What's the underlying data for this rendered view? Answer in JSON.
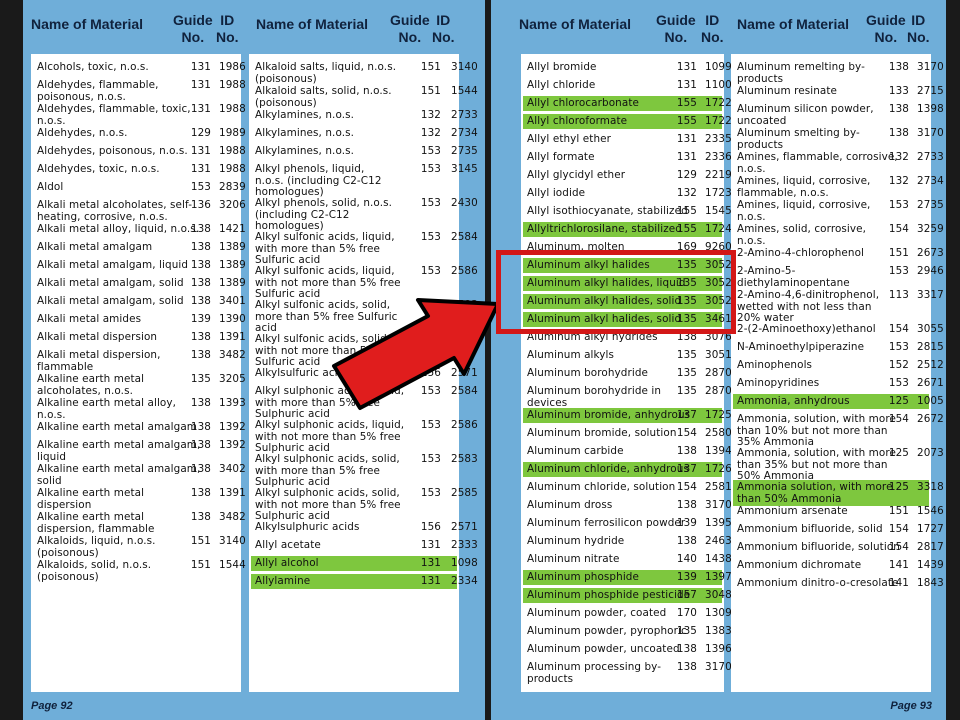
{
  "headers": {
    "name": "Name of Material",
    "guide1": "Guide",
    "guide2": "No.",
    "id1": "ID",
    "id2": "No."
  },
  "left_page": {
    "footer": "Page 92",
    "col1": [
      [
        "Alcohols, toxic, n.o.s.",
        "131",
        "1986"
      ],
      [
        "Aldehydes, flammable,\npoisonous, n.o.s.",
        "131",
        "1988"
      ],
      [
        "Aldehydes, flammable, toxic,\nn.o.s.",
        "131",
        "1988"
      ],
      [
        "Aldehydes, n.o.s.",
        "129",
        "1989"
      ],
      [
        "Aldehydes, poisonous, n.o.s.",
        "131",
        "1988"
      ],
      [
        "Aldehydes, toxic, n.o.s.",
        "131",
        "1988"
      ],
      [
        "Aldol",
        "153",
        "2839"
      ],
      [
        "Alkali metal alcoholates, self-\nheating, corrosive, n.o.s.",
        "136",
        "3206"
      ],
      [
        "Alkali metal alloy, liquid, n.o.s.",
        "138",
        "1421"
      ],
      [
        "Alkali metal amalgam",
        "138",
        "1389"
      ],
      [
        "Alkali metal amalgam, liquid",
        "138",
        "1389"
      ],
      [
        "Alkali metal amalgam, solid",
        "138",
        "1389"
      ],
      [
        "Alkali metal amalgam, solid",
        "138",
        "3401"
      ],
      [
        "Alkali metal amides",
        "139",
        "1390"
      ],
      [
        "Alkali metal dispersion",
        "138",
        "1391"
      ],
      [
        "Alkali metal dispersion,\nflammable",
        "138",
        "3482"
      ],
      [
        "Alkaline earth metal\nalcoholates, n.o.s.",
        "135",
        "3205"
      ],
      [
        "Alkaline earth metal alloy,\nn.o.s.",
        "138",
        "1393"
      ],
      [
        "Alkaline earth metal amalgam",
        "138",
        "1392"
      ],
      [
        "Alkaline earth metal amalgam,\nliquid",
        "138",
        "1392"
      ],
      [
        "Alkaline earth metal amalgam,\nsolid",
        "138",
        "3402"
      ],
      [
        "Alkaline earth metal\ndispersion",
        "138",
        "1391"
      ],
      [
        "Alkaline earth metal\ndispersion, flammable",
        "138",
        "3482"
      ],
      [
        "Alkaloids, liquid, n.o.s.\n(poisonous)",
        "151",
        "3140"
      ],
      [
        "Alkaloids, solid, n.o.s.\n(poisonous)",
        "151",
        "1544"
      ]
    ],
    "col2": [
      [
        "Alkaloid salts, liquid, n.o.s.\n(poisonous)",
        "151",
        "3140"
      ],
      [
        "Alkaloid salts, solid, n.o.s.\n(poisonous)",
        "151",
        "1544"
      ],
      [
        "Alkylamines, n.o.s.",
        "132",
        "2733"
      ],
      [
        "Alkylamines, n.o.s.",
        "132",
        "2734"
      ],
      [
        "Alkylamines, n.o.s.",
        "153",
        "2735"
      ],
      [
        "Alkyl phenols, liquid,\nn.o.s. (including C2-C12\nhomologues)",
        "153",
        "3145"
      ],
      [
        "Alkyl phenols, solid, n.o.s.\n(including C2-C12\nhomologues)",
        "153",
        "2430"
      ],
      [
        "Alkyl sulfonic acids, liquid,\nwith more than 5% free\nSulfuric acid",
        "153",
        "2584"
      ],
      [
        "Alkyl sulfonic acids, liquid,\nwith not more than 5% free\nSulfuric acid",
        "153",
        "2586"
      ],
      [
        "Alkyl sulfonic acids, solid,\nmore than 5% free Sulfuric\nacid",
        "153",
        "2583"
      ],
      [
        "Alkyl sulfonic acids, solid,\nwith not more than 5% free\nSulfuric acid",
        "153",
        "2585"
      ],
      [
        "Alkylsulfuric acids",
        "156",
        "2571"
      ],
      [
        "Alkyl sulphonic acids, liquid,\nwith more than 5% free\nSulphuric acid",
        "153",
        "2584"
      ],
      [
        "Alkyl sulphonic acids, liquid,\nwith not more than 5% free\nSulphuric acid",
        "153",
        "2586"
      ],
      [
        "Alkyl sulphonic acids, solid,\nwith more than 5% free\nSulphuric acid",
        "153",
        "2583"
      ],
      [
        "Alkyl sulphonic acids, solid,\nwith not more than 5% free\nSulphuric acid",
        "153",
        "2585"
      ],
      [
        "Alkylsulphuric acids",
        "156",
        "2571"
      ],
      [
        "Allyl acetate",
        "131",
        "2333"
      ],
      [
        "Allyl alcohol",
        "131",
        "1098"
      ],
      [
        "Allylamine",
        "131",
        "2334"
      ]
    ]
  },
  "right_page": {
    "footer": "Page 93",
    "col1": [
      [
        "Allyl bromide",
        "131",
        "1099"
      ],
      [
        "Allyl chloride",
        "131",
        "1100"
      ],
      [
        "Allyl chlorocarbonate",
        "155",
        "1722"
      ],
      [
        "Allyl chloroformate",
        "155",
        "1722"
      ],
      [
        "Allyl ethyl ether",
        "131",
        "2335"
      ],
      [
        "Allyl formate",
        "131",
        "2336"
      ],
      [
        "Allyl glycidyl ether",
        "129",
        "2219"
      ],
      [
        "Allyl iodide",
        "132",
        "1723"
      ],
      [
        "Allyl isothiocyanate, stabilized",
        "155",
        "1545"
      ],
      [
        "Allyltrichlorosilane, stabilized",
        "155",
        "1724"
      ],
      [
        "Aluminum, molten",
        "169",
        "9260"
      ],
      [
        "Aluminum alkyl halides",
        "135",
        "3052"
      ],
      [
        "Aluminum alkyl halides, liquid",
        "135",
        "3052"
      ],
      [
        "Aluminum alkyl halides, solid",
        "135",
        "3052"
      ],
      [
        "Aluminum alkyl halides, solid",
        "135",
        "3461"
      ],
      [
        "Aluminum alkyl hydrides",
        "138",
        "3076"
      ],
      [
        "Aluminum alkyls",
        "135",
        "3051"
      ],
      [
        "Aluminum borohydride",
        "135",
        "2870"
      ],
      [
        "Aluminum borohydride in\ndevices",
        "135",
        "2870"
      ],
      [
        "Aluminum bromide, anhydrous",
        "137",
        "1725"
      ],
      [
        "Aluminum bromide, solution",
        "154",
        "2580"
      ],
      [
        "Aluminum carbide",
        "138",
        "1394"
      ],
      [
        "Aluminum chloride, anhydrous",
        "137",
        "1726"
      ],
      [
        "Aluminum chloride, solution",
        "154",
        "2581"
      ],
      [
        "Aluminum dross",
        "138",
        "3170"
      ],
      [
        "Aluminum ferrosilicon powder",
        "139",
        "1395"
      ],
      [
        "Aluminum hydride",
        "138",
        "2463"
      ],
      [
        "Aluminum nitrate",
        "140",
        "1438"
      ],
      [
        "Aluminum phosphide",
        "139",
        "1397"
      ],
      [
        "Aluminum phosphide pesticide",
        "157",
        "3048"
      ],
      [
        "Aluminum powder, coated",
        "170",
        "1309"
      ],
      [
        "Aluminum powder, pyrophoric",
        "135",
        "1383"
      ],
      [
        "Aluminum powder, uncoated",
        "138",
        "1396"
      ],
      [
        "Aluminum processing by-\nproducts",
        "138",
        "3170"
      ]
    ],
    "col2": [
      [
        "Aluminum remelting by-\nproducts",
        "138",
        "3170"
      ],
      [
        "Aluminum resinate",
        "133",
        "2715"
      ],
      [
        "Aluminum silicon powder,\nuncoated",
        "138",
        "1398"
      ],
      [
        "Aluminum smelting by-\nproducts",
        "138",
        "3170"
      ],
      [
        "Amines, flammable, corrosive,\nn.o.s.",
        "132",
        "2733"
      ],
      [
        "Amines, liquid, corrosive,\nflammable, n.o.s.",
        "132",
        "2734"
      ],
      [
        "Amines, liquid, corrosive,\nn.o.s.",
        "153",
        "2735"
      ],
      [
        "Amines, solid, corrosive,\nn.o.s.",
        "154",
        "3259"
      ],
      [
        "2-Amino-4-chlorophenol",
        "151",
        "2673"
      ],
      [
        "2-Amino-5-\ndiethylaminopentane",
        "153",
        "2946"
      ],
      [
        "2-Amino-4,6-dinitrophenol,\nwetted with not less than\n20% water",
        "113",
        "3317"
      ],
      [
        "2-(2-Aminoethoxy)ethanol",
        "154",
        "3055"
      ],
      [
        "N-Aminoethylpiperazine",
        "153",
        "2815"
      ],
      [
        "Aminophenols",
        "152",
        "2512"
      ],
      [
        "Aminopyridines",
        "153",
        "2671"
      ],
      [
        "Ammonia, anhydrous",
        "125",
        "1005"
      ],
      [
        "Ammonia, solution, with more\nthan 10% but not more than\n35% Ammonia",
        "154",
        "2672"
      ],
      [
        "Ammonia, solution, with more\nthan 35% but not more than\n50% Ammonia",
        "125",
        "2073"
      ],
      [
        "Ammonia solution, with more\nthan 50% Ammonia",
        "125",
        "3318"
      ],
      [
        "Ammonium arsenate",
        "151",
        "1546"
      ],
      [
        "Ammonium bifluoride, solid",
        "154",
        "1727"
      ],
      [
        "Ammonium bifluoride, solution",
        "154",
        "2817"
      ],
      [
        "Ammonium dichromate",
        "141",
        "1439"
      ],
      [
        "Ammonium dinitro-o-cresolate",
        "141",
        "1843"
      ]
    ]
  },
  "highlight_colors": {
    "green": "#7ec73e",
    "red": "#d31717",
    "page_blue": "#6faed9"
  }
}
